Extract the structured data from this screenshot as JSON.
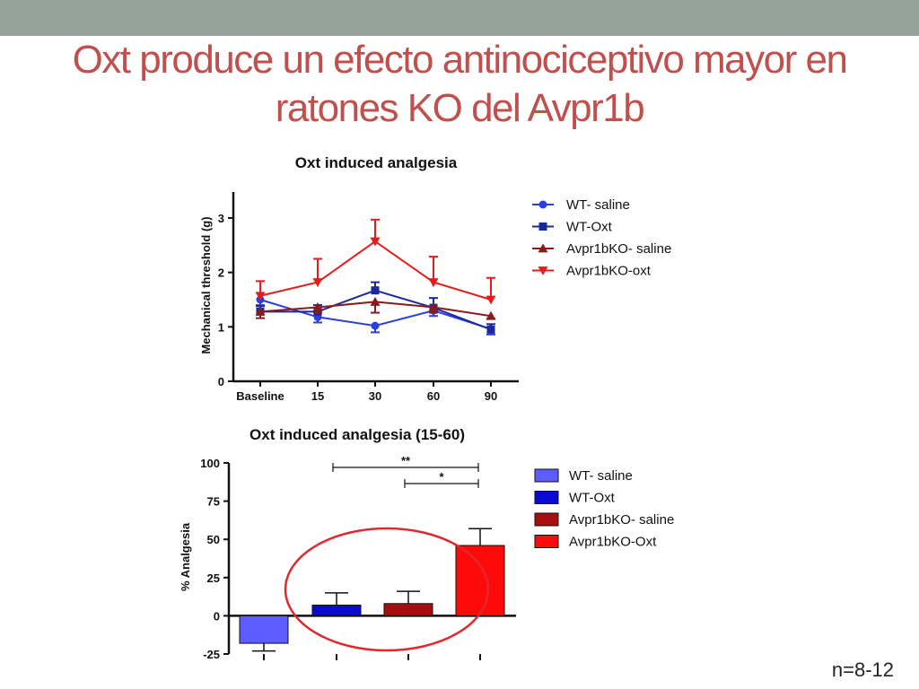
{
  "slide": {
    "title_line1": "Oxt produce un efecto antinociceptivo mayor en",
    "title_line2": "ratones KO del Avpr1b",
    "footnote": "n=8-12"
  },
  "chart_data": [
    {
      "type": "line",
      "title": "Oxt induced analgesia",
      "ylabel": "Mechanical threshold (g)",
      "xlabel": "",
      "categories": [
        "Baseline",
        "15",
        "30",
        "60",
        "90"
      ],
      "ylim": [
        0,
        3
      ],
      "yticks": [
        0,
        1,
        2,
        3
      ],
      "legend_position": "right",
      "series": [
        {
          "name": "WT- saline",
          "color": "#2b3fe0",
          "marker": "circle",
          "values": [
            1.5,
            1.18,
            1.02,
            1.3,
            0.96
          ],
          "errors": [
            0.1,
            0.1,
            0.12,
            0.1,
            0.1
          ]
        },
        {
          "name": "WT-Oxt",
          "color": "#1a2a9c",
          "marker": "square",
          "values": [
            1.28,
            1.28,
            1.67,
            1.35,
            0.95
          ],
          "errors": [
            0.1,
            0.12,
            0.15,
            0.18,
            0.1
          ]
        },
        {
          "name": "Avpr1bKO- saline",
          "color": "#8b1a1a",
          "marker": "triangle-up",
          "values": [
            1.28,
            1.36,
            1.46,
            1.36,
            1.2
          ],
          "errors": [
            0.12,
            0.1,
            0.2,
            0.1,
            0.05
          ]
        },
        {
          "name": "Avpr1bKO-oxt",
          "color": "#e61c1c",
          "marker": "triangle-down",
          "values": [
            1.57,
            1.82,
            2.57,
            1.82,
            1.5
          ],
          "errors": [
            0.27,
            0.43,
            0.4,
            0.47,
            0.4
          ]
        }
      ]
    },
    {
      "type": "bar",
      "title": "Oxt induced analgesia (15-60)",
      "ylabel": "% Analgesia",
      "xlabel": "",
      "categories": [
        "WT- saline",
        "WT-Oxt",
        "Avpr1bKO- saline",
        "Avpr1bKO-Oxt"
      ],
      "values": [
        -18,
        7,
        8,
        46
      ],
      "errors": [
        5,
        8,
        8,
        11
      ],
      "colors": [
        "#5c5cff",
        "#0a0ad0",
        "#a60f0f",
        "#ff0a0a"
      ],
      "ylim": [
        -25,
        100
      ],
      "yticks": [
        -25,
        0,
        25,
        50,
        75,
        100
      ],
      "legend_position": "right",
      "significance": [
        {
          "label": "**",
          "from": 1,
          "to": 3
        },
        {
          "label": "*",
          "from": 2,
          "to": 3
        }
      ],
      "annotation": "red ellipse highlighting WT-Oxt, Avpr1bKO- saline and Avpr1bKO-Oxt bars"
    }
  ]
}
